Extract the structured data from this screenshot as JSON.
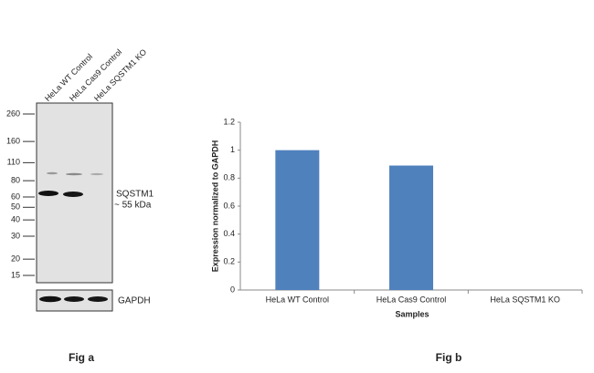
{
  "figure_a": {
    "lanes": [
      "HeLa WT Control",
      "HeLa Cas9 Control",
      "HeLa SQSTM1 KO"
    ],
    "markers": [
      260,
      160,
      110,
      80,
      60,
      50,
      40,
      30,
      20,
      15
    ],
    "band_label": "SQSTM1",
    "band_size": "~ 55 kDa",
    "loading_control": "GAPDH",
    "caption": "Fig a"
  },
  "chart_data": {
    "type": "bar",
    "categories": [
      "HeLa WT Control",
      "HeLa Cas9 Control",
      "HeLa SQSTM1 KO"
    ],
    "values": [
      1,
      0.89,
      0
    ],
    "color": "#4f81bd",
    "ylabel": "Expression  normalized to GAPDH",
    "xlabel": "Samples",
    "caption": "Fig b",
    "ylim": [
      0,
      1.2
    ],
    "yticks": [
      0,
      0.2,
      0.4,
      0.6,
      0.8,
      1,
      1.2
    ]
  }
}
